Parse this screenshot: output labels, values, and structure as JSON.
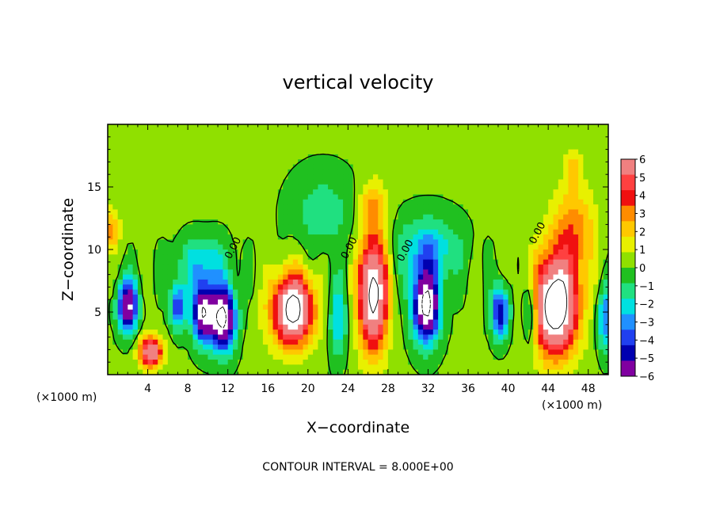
{
  "chart_data": {
    "type": "heatmap",
    "title": "vertical velocity",
    "xlabel": "X−coordinate",
    "ylabel": "Z−coordinate",
    "x_unit_left": "(×1000 m)",
    "x_unit_right": "(×1000 m)",
    "xlim": [
      0,
      50
    ],
    "ylim": [
      0,
      20
    ],
    "x_ticks": [
      4,
      8,
      12,
      16,
      20,
      24,
      28,
      32,
      36,
      40,
      44,
      48
    ],
    "y_ticks": [
      5,
      10,
      15
    ],
    "x_tick_labels": [
      "4",
      "8",
      "12",
      "16",
      "20",
      "24",
      "28",
      "32",
      "36",
      "40",
      "44",
      "48"
    ],
    "y_tick_labels": [
      "5",
      "10",
      "15"
    ],
    "colorbar": {
      "range": [
        -6,
        6
      ],
      "tick_labels": [
        "6",
        "5",
        "4",
        "3",
        "2",
        "1",
        "0",
        "−1",
        "−2",
        "−3",
        "−4",
        "−5",
        "−6"
      ],
      "colors": [
        "#f08080",
        "#ff4040",
        "#f01010",
        "#ff8c00",
        "#ffc800",
        "#e8f000",
        "#90e000",
        "#20c020",
        "#20e080",
        "#00e0e0",
        "#2090ff",
        "#2040f0",
        "#0000b0",
        "#8000a0"
      ]
    },
    "contour_interval_text": "CONTOUR INTERVAL = 8.000E+00",
    "contour_label": "0.00",
    "features": [
      {
        "x": 2,
        "z": 5.5,
        "w": -8,
        "sx": 0.9,
        "sz": 2.0
      },
      {
        "x": 4.3,
        "z": 1.8,
        "w": 7,
        "sx": 1.1,
        "sz": 1.2
      },
      {
        "x": 7,
        "z": 5.5,
        "w": -5,
        "sx": 0.7,
        "sz": 1.8
      },
      {
        "x": 9.5,
        "z": 5.0,
        "w": -8,
        "sx": 1.0,
        "sz": 2.3
      },
      {
        "x": 11.5,
        "z": 4.5,
        "w": -9,
        "sx": 1.2,
        "sz": 2.5
      },
      {
        "x": 9.5,
        "z": 9.0,
        "w": -2.5,
        "sx": 2.5,
        "sz": 2.0
      },
      {
        "x": 18.5,
        "z": 5.2,
        "w": 9,
        "sx": 2.0,
        "sz": 2.8
      },
      {
        "x": 23,
        "z": 4.5,
        "w": -3,
        "sx": 0.8,
        "sz": 3.0
      },
      {
        "x": 26.5,
        "z": 6.5,
        "w": 9,
        "sx": 1.4,
        "sz": 4.5
      },
      {
        "x": 26.5,
        "z": 13.5,
        "w": 2.5,
        "sx": 1.2,
        "sz": 2.0
      },
      {
        "x": 31.8,
        "z": 5.5,
        "w": -9,
        "sx": 1.3,
        "sz": 2.8
      },
      {
        "x": 32,
        "z": 10.0,
        "w": -3,
        "sx": 3.0,
        "sz": 2.5
      },
      {
        "x": 39.2,
        "z": 5.0,
        "w": -6,
        "sx": 0.8,
        "sz": 2.0
      },
      {
        "x": 42.2,
        "z": 5.0,
        "w": -4,
        "sx": 0.7,
        "sz": 2.5
      },
      {
        "x": 44.7,
        "z": 5.5,
        "w": 10,
        "sx": 2.2,
        "sz": 3.8
      },
      {
        "x": 46.5,
        "z": 11.5,
        "w": 3,
        "sx": 2.2,
        "sz": 3.5
      },
      {
        "x": 46.5,
        "z": 16.5,
        "w": 2,
        "sx": 0.8,
        "sz": 1.5
      },
      {
        "x": 49.7,
        "z": 4.5,
        "w": -4,
        "sx": 0.7,
        "sz": 2.5
      },
      {
        "x": 0.3,
        "z": 11.5,
        "w": 3,
        "sx": 0.8,
        "sz": 1.5
      },
      {
        "x": 21.5,
        "z": 13.0,
        "w": -1.6,
        "sx": 3.0,
        "sz": 3.0
      },
      {
        "x": 3.0,
        "z": 16.0,
        "w": 0.5,
        "sx": 5.0,
        "sz": 3.0
      },
      {
        "x": 15.0,
        "z": 2.5,
        "w": 0.3,
        "sx": 1.5,
        "sz": 2.0
      }
    ],
    "grid": false,
    "legend": "colorbar-right"
  }
}
